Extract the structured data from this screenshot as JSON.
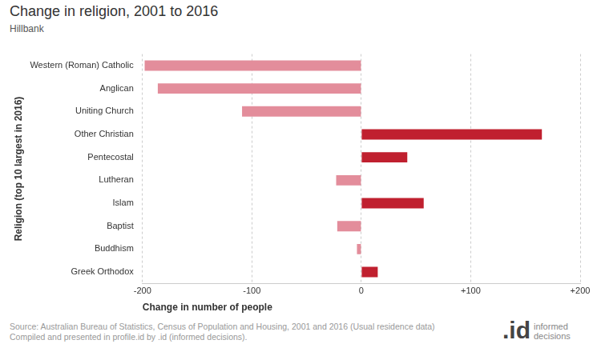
{
  "chart_data": {
    "type": "bar",
    "orientation": "horizontal",
    "title": "Change in religion, 2001 to 2016",
    "subtitle": "Hillbank",
    "x_label": "Change in number of people",
    "y_label": "Religion (top 10 largest in 2016)",
    "categories": [
      "Western (Roman) Catholic",
      "Anglican",
      "Uniting Church",
      "Other Christian",
      "Pentecostal",
      "Lutheran",
      "Islam",
      "Baptist",
      "Buddhism",
      "Greek Orthodox"
    ],
    "values": [
      -198,
      -186,
      -109,
      165,
      42,
      -23,
      57,
      -22,
      -4,
      15
    ],
    "colors": [
      "#e38d9b",
      "#e38d9b",
      "#e38d9b",
      "#c0202f",
      "#c0202f",
      "#e38d9b",
      "#c0202f",
      "#e38d9b",
      "#e38d9b",
      "#c0202f"
    ],
    "xlim": [
      -200,
      200
    ],
    "xticks": [
      -200,
      -100,
      0,
      {
        "value": 100,
        "label": "+100"
      },
      {
        "value": 200,
        "label": "+200"
      }
    ],
    "grid": true,
    "source": [
      "Source: Australian Bureau of Statistics, Census of Population and Housing, 2001 and 2016 (Usual residence data)",
      "Compiled and presented in profile.id by .id (informed decisions)."
    ],
    "logo": {
      "mark": ".id",
      "text": "informed decisions"
    }
  }
}
